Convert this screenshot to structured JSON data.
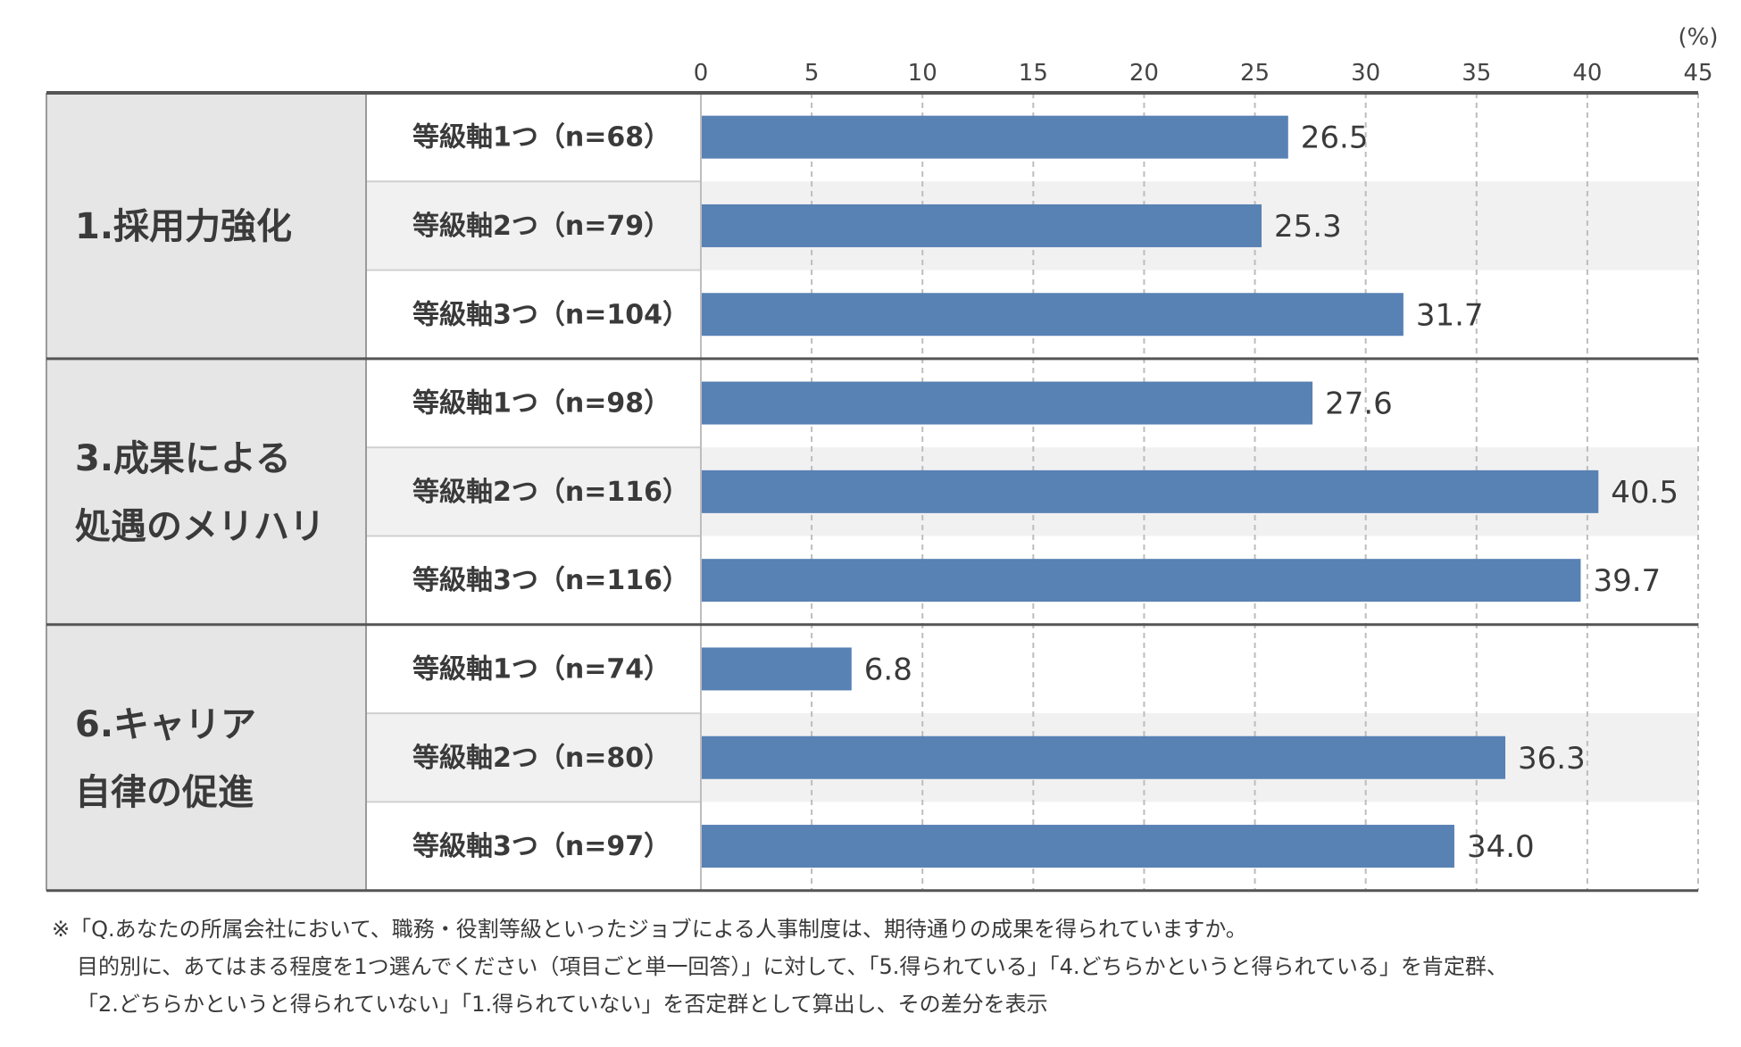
{
  "chart_data": {
    "type": "bar",
    "orientation": "horizontal",
    "unit": "(%)",
    "xlim": [
      0,
      45
    ],
    "ticks": [
      0,
      5,
      10,
      15,
      20,
      25,
      30,
      35,
      40,
      45
    ],
    "grid": true,
    "bar_color": "#5881b4",
    "groups": [
      {
        "label_lines": [
          "1.採用力強化"
        ],
        "rows": [
          {
            "label": "等級軸1つ（n=68）",
            "value": 26.5,
            "value_text": "26.5"
          },
          {
            "label": "等級軸2つ（n=79）",
            "value": 25.3,
            "value_text": "25.3"
          },
          {
            "label": "等級軸3つ（n=104）",
            "value": 31.7,
            "value_text": "31.7"
          }
        ]
      },
      {
        "label_lines": [
          "3.成果による",
          "処遇のメリハリ"
        ],
        "rows": [
          {
            "label": "等級軸1つ（n=98）",
            "value": 27.6,
            "value_text": "27.6"
          },
          {
            "label": "等級軸2つ（n=116）",
            "value": 40.5,
            "value_text": "40.5"
          },
          {
            "label": "等級軸3つ（n=116）",
            "value": 39.7,
            "value_text": "39.7"
          }
        ]
      },
      {
        "label_lines": [
          "6.キャリア",
          "自律の促進"
        ],
        "rows": [
          {
            "label": "等級軸1つ（n=74）",
            "value": 6.8,
            "value_text": "6.8"
          },
          {
            "label": "等級軸2つ（n=80）",
            "value": 36.3,
            "value_text": "36.3"
          },
          {
            "label": "等級軸3つ（n=97）",
            "value": 34.0,
            "value_text": "34.0"
          }
        ]
      }
    ]
  },
  "footnote": {
    "line1": "※「Q.あなたの所属会社において、職務・役割等級といったジョブによる人事制度は、期待通りの成果を得られていますか。",
    "line2": "目的別に、あてはまる程度を1つ選んでください（項目ごと単一回答）」に対して、「5.得られている」「4.どちらかというと得られている」を肯定群、",
    "line3": "「2.どちらかというと得られていない」「1.得られていない」を否定群として算出し、その差分を表示"
  }
}
